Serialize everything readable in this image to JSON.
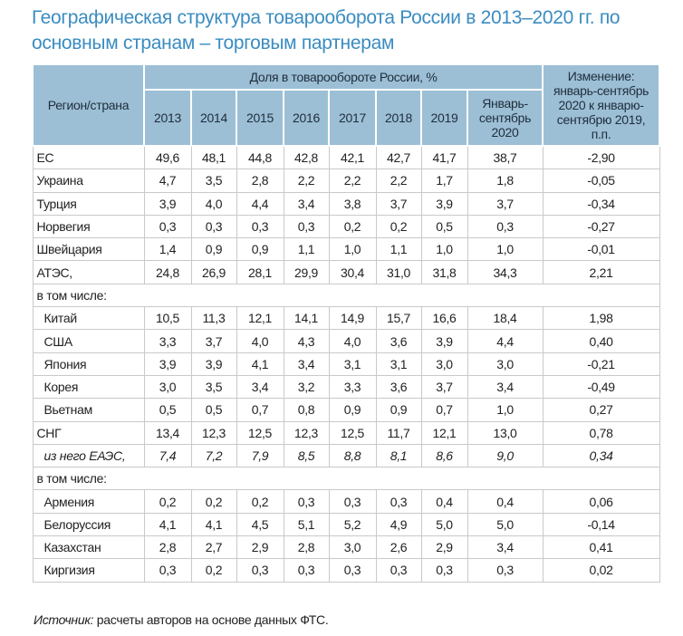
{
  "title": "Географическая структура товарооборота России в 2013–2020 гг. по основным странам – торговым партнерам",
  "header": {
    "region": "Регион/страна",
    "share": "Доля в товарообороте России, %",
    "years": [
      "2013",
      "2014",
      "2015",
      "2016",
      "2017",
      "2018",
      "2019",
      "Январь-сентябрь 2020"
    ],
    "change": "Изменение: январь-сентябрь 2020 к январю-сентябрю 2019, п.п."
  },
  "rows": [
    {
      "name": "ЕС",
      "values": [
        "49,6",
        "48,1",
        "44,8",
        "42,8",
        "42,1",
        "42,7",
        "41,7",
        "38,7",
        "-2,90"
      ]
    },
    {
      "name": "Украина",
      "values": [
        "4,7",
        "3,5",
        "2,8",
        "2,2",
        "2,2",
        "2,2",
        "1,7",
        "1,8",
        "-0,05"
      ]
    },
    {
      "name": "Турция",
      "values": [
        "3,9",
        "4,0",
        "4,4",
        "3,4",
        "3,8",
        "3,7",
        "3,9",
        "3,7",
        "-0,34"
      ]
    },
    {
      "name": "Норвегия",
      "values": [
        "0,3",
        "0,3",
        "0,3",
        "0,3",
        "0,2",
        "0,2",
        "0,5",
        "0,3",
        "-0,27"
      ]
    },
    {
      "name": "Швейцария",
      "values": [
        "1,4",
        "0,9",
        "0,9",
        "1,1",
        "1,0",
        "1,1",
        "1,0",
        "1,0",
        "-0,01"
      ]
    },
    {
      "name": "АТЭС,",
      "values": [
        "24,8",
        "26,9",
        "28,1",
        "29,9",
        "30,4",
        "31,0",
        "31,8",
        "34,3",
        "2,21"
      ]
    },
    {
      "section": "в том числе:"
    },
    {
      "name": "Китай",
      "sub": true,
      "values": [
        "10,5",
        "11,3",
        "12,1",
        "14,1",
        "14,9",
        "15,7",
        "16,6",
        "18,4",
        "1,98"
      ]
    },
    {
      "name": "США",
      "sub": true,
      "values": [
        "3,3",
        "3,7",
        "4,0",
        "4,3",
        "4,0",
        "3,6",
        "3,9",
        "4,4",
        "0,40"
      ]
    },
    {
      "name": "Япония",
      "sub": true,
      "values": [
        "3,9",
        "3,9",
        "4,1",
        "3,4",
        "3,1",
        "3,1",
        "3,0",
        "3,0",
        "-0,21"
      ]
    },
    {
      "name": "Корея",
      "sub": true,
      "values": [
        "3,0",
        "3,5",
        "3,4",
        "3,2",
        "3,3",
        "3,6",
        "3,7",
        "3,4",
        "-0,49"
      ]
    },
    {
      "name": "Вьетнам",
      "sub": true,
      "values": [
        "0,5",
        "0,5",
        "0,7",
        "0,8",
        "0,9",
        "0,9",
        "0,7",
        "1,0",
        "0,27"
      ]
    },
    {
      "name": "СНГ",
      "values": [
        "13,4",
        "12,3",
        "12,5",
        "12,3",
        "12,5",
        "11,7",
        "12,1",
        "13,0",
        "0,78"
      ]
    },
    {
      "name": "из него ЕАЭС,",
      "sub": true,
      "italic": true,
      "values": [
        "7,4",
        "7,2",
        "7,9",
        "8,5",
        "8,8",
        "8,1",
        "8,6",
        "9,0",
        "0,34"
      ]
    },
    {
      "section": "в том числе:"
    },
    {
      "name": "Армения",
      "sub": true,
      "values": [
        "0,2",
        "0,2",
        "0,2",
        "0,3",
        "0,3",
        "0,3",
        "0,4",
        "0,4",
        "0,06"
      ]
    },
    {
      "name": "Белоруссия",
      "sub": true,
      "values": [
        "4,1",
        "4,1",
        "4,5",
        "5,1",
        "5,2",
        "4,9",
        "5,0",
        "5,0",
        "-0,14"
      ]
    },
    {
      "name": "Казахстан",
      "sub": true,
      "values": [
        "2,8",
        "2,7",
        "2,9",
        "2,8",
        "3,0",
        "2,6",
        "2,9",
        "3,4",
        "0,41"
      ]
    },
    {
      "name": "Киргизия",
      "sub": true,
      "values": [
        "0,3",
        "0,2",
        "0,3",
        "0,3",
        "0,3",
        "0,3",
        "0,3",
        "0,3",
        "0,02"
      ]
    }
  ],
  "source": {
    "label": "Источник:",
    "text": " расчеты авторов на основе данных ФТС."
  }
}
